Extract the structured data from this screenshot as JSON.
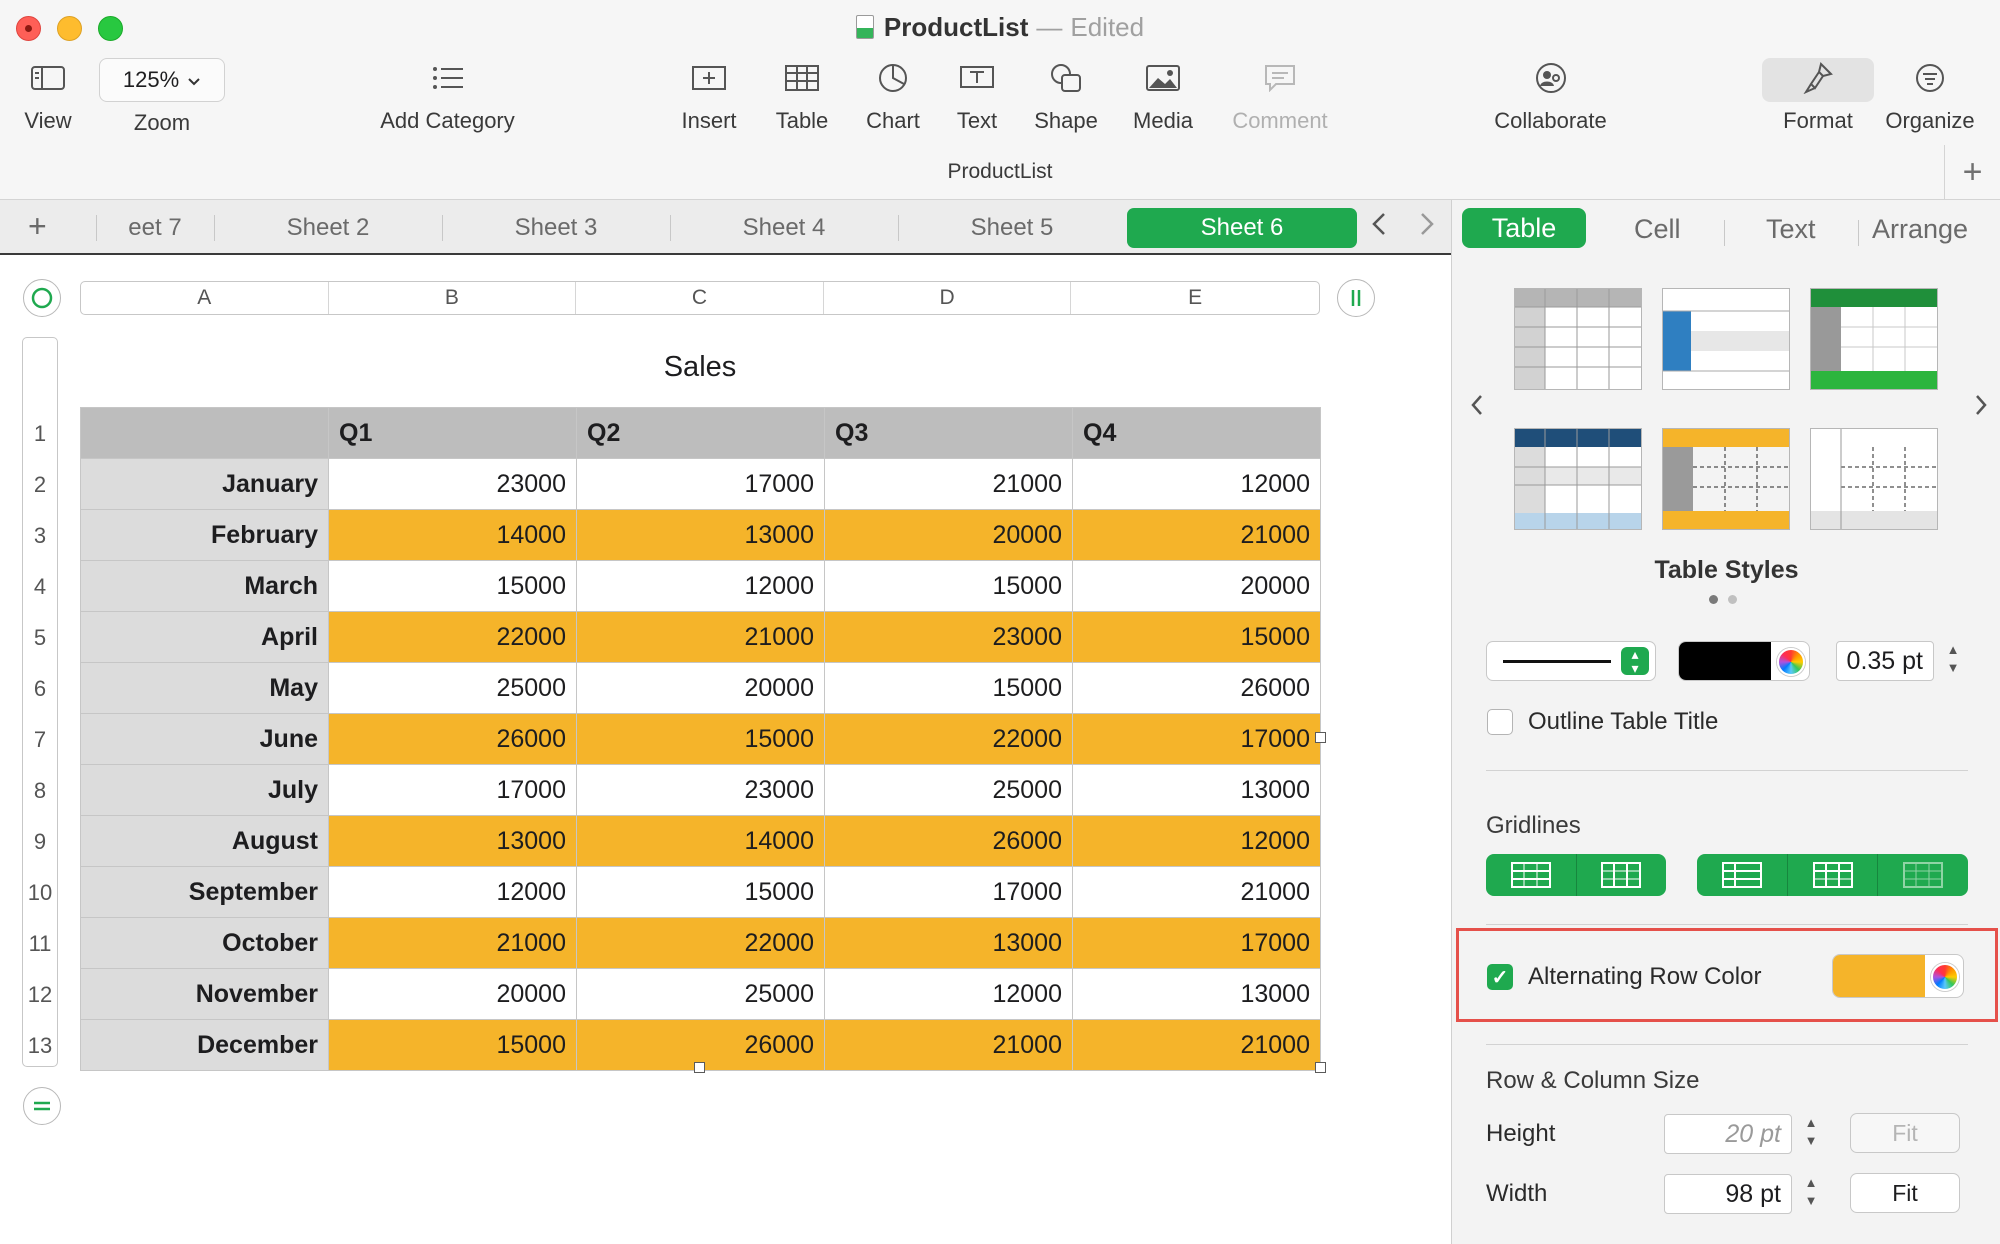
{
  "window": {
    "doc_name": "ProductList",
    "separator": "—",
    "status": "Edited"
  },
  "toolbar": {
    "view": "View",
    "zoom_value": "125%",
    "zoom": "Zoom",
    "add_category": "Add Category",
    "insert": "Insert",
    "table": "Table",
    "chart": "Chart",
    "text": "Text",
    "shape": "Shape",
    "media": "Media",
    "comment": "Comment",
    "collaborate": "Collaborate",
    "format": "Format",
    "organize": "Organize",
    "document_name": "ProductList"
  },
  "sheets": {
    "tabs": [
      "eet 7",
      "Sheet 2",
      "Sheet 3",
      "Sheet 4",
      "Sheet 5"
    ],
    "active": "Sheet 6"
  },
  "columns": [
    "A",
    "B",
    "C",
    "D",
    "E"
  ],
  "table": {
    "title": "Sales",
    "header": [
      "",
      "Q1",
      "Q2",
      "Q3",
      "Q4"
    ],
    "rows": [
      {
        "label": "January",
        "values": [
          "23000",
          "17000",
          "21000",
          "12000"
        ]
      },
      {
        "label": "February",
        "values": [
          "14000",
          "13000",
          "20000",
          "21000"
        ]
      },
      {
        "label": "March",
        "values": [
          "15000",
          "12000",
          "15000",
          "20000"
        ]
      },
      {
        "label": "April",
        "values": [
          "22000",
          "21000",
          "23000",
          "15000"
        ]
      },
      {
        "label": "May",
        "values": [
          "25000",
          "20000",
          "15000",
          "26000"
        ]
      },
      {
        "label": "June",
        "values": [
          "26000",
          "15000",
          "22000",
          "17000"
        ]
      },
      {
        "label": "July",
        "values": [
          "17000",
          "23000",
          "25000",
          "13000"
        ]
      },
      {
        "label": "August",
        "values": [
          "13000",
          "14000",
          "26000",
          "12000"
        ]
      },
      {
        "label": "September",
        "values": [
          "12000",
          "15000",
          "17000",
          "21000"
        ]
      },
      {
        "label": "October",
        "values": [
          "21000",
          "22000",
          "13000",
          "17000"
        ]
      },
      {
        "label": "November",
        "values": [
          "20000",
          "25000",
          "12000",
          "13000"
        ]
      },
      {
        "label": "December",
        "values": [
          "15000",
          "26000",
          "21000",
          "21000"
        ]
      }
    ],
    "row_numbers": [
      "1",
      "2",
      "3",
      "4",
      "5",
      "6",
      "7",
      "8",
      "9",
      "10",
      "11",
      "12",
      "13"
    ],
    "alternate_color": "#f5b42a"
  },
  "inspector": {
    "tabs": {
      "table": "Table",
      "cell": "Cell",
      "text": "Text",
      "arrange": "Arrange"
    },
    "table_styles_label": "Table Styles",
    "outline_width": "0.35 pt",
    "outline_color": "#000000",
    "outline_table_title": "Outline Table Title",
    "outline_table_title_checked": false,
    "gridlines": "Gridlines",
    "alternating_row_color": "Alternating Row Color",
    "alternating_row_color_checked": true,
    "alternating_color": "#f5b42a",
    "row_column_size": "Row & Column Size",
    "height_label": "Height",
    "height_value": "20 pt",
    "width_label": "Width",
    "width_value": "98 pt",
    "fit": "Fit"
  },
  "accent_color": "#1fa94f"
}
